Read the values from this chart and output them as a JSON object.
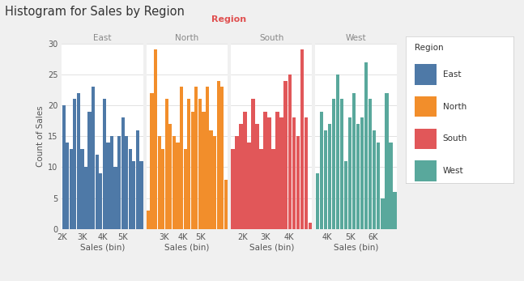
{
  "title": "Histogram for Sales by Region",
  "col_label": "Region",
  "ylabel": "Count of Sales",
  "xlabel": "Sales (bin)",
  "regions": [
    "East",
    "North",
    "South",
    "West"
  ],
  "colors": {
    "East": "#4E79A7",
    "North": "#F28E2B",
    "South": "#E15759",
    "West": "#59A89C"
  },
  "data": {
    "East": {
      "values": [
        20,
        14,
        13,
        21,
        22,
        13,
        10,
        19,
        23,
        12,
        9,
        21,
        14,
        15,
        10,
        15,
        18,
        15,
        13,
        11,
        16,
        11
      ],
      "xmin": 2000,
      "xmax": 6000,
      "xticks": [
        2000,
        3000,
        4000,
        5000
      ],
      "xlabels": [
        "2K",
        "3K",
        "4K",
        "5K"
      ]
    },
    "North": {
      "values": [
        3,
        22,
        29,
        15,
        13,
        21,
        17,
        15,
        14,
        23,
        13,
        21,
        19,
        23,
        21,
        19,
        23,
        16,
        15,
        24,
        23,
        8
      ],
      "xmin": 2000,
      "xmax": 6500,
      "xticks": [
        3000,
        4000,
        5000
      ],
      "xlabels": [
        "3K",
        "4K",
        "5K"
      ]
    },
    "South": {
      "values": [
        13,
        15,
        17,
        19,
        14,
        21,
        17,
        13,
        19,
        18,
        13,
        19,
        18,
        24,
        25,
        18,
        15,
        29,
        18,
        1
      ],
      "xmin": 1500,
      "xmax": 5000,
      "xticks": [
        2000,
        3000,
        4000
      ],
      "xlabels": [
        "2K",
        "3K",
        "4K"
      ]
    },
    "West": {
      "values": [
        9,
        19,
        16,
        17,
        21,
        25,
        21,
        11,
        18,
        22,
        17,
        18,
        27,
        21,
        16,
        14,
        5,
        22,
        14,
        6
      ],
      "xmin": 3500,
      "xmax": 7000,
      "xticks": [
        4000,
        5000,
        6000
      ],
      "xlabels": [
        "4K",
        "5K",
        "6K"
      ]
    }
  },
  "ylim": [
    0,
    30
  ],
  "yticks": [
    0,
    5,
    10,
    15,
    20,
    25,
    30
  ],
  "background_color": "#F0F0F0",
  "plot_background": "#FFFFFF",
  "grid_color": "#DDDDDD",
  "title_color": "#333333",
  "col_label_color": "#E05050",
  "subplot_title_color": "#888888"
}
